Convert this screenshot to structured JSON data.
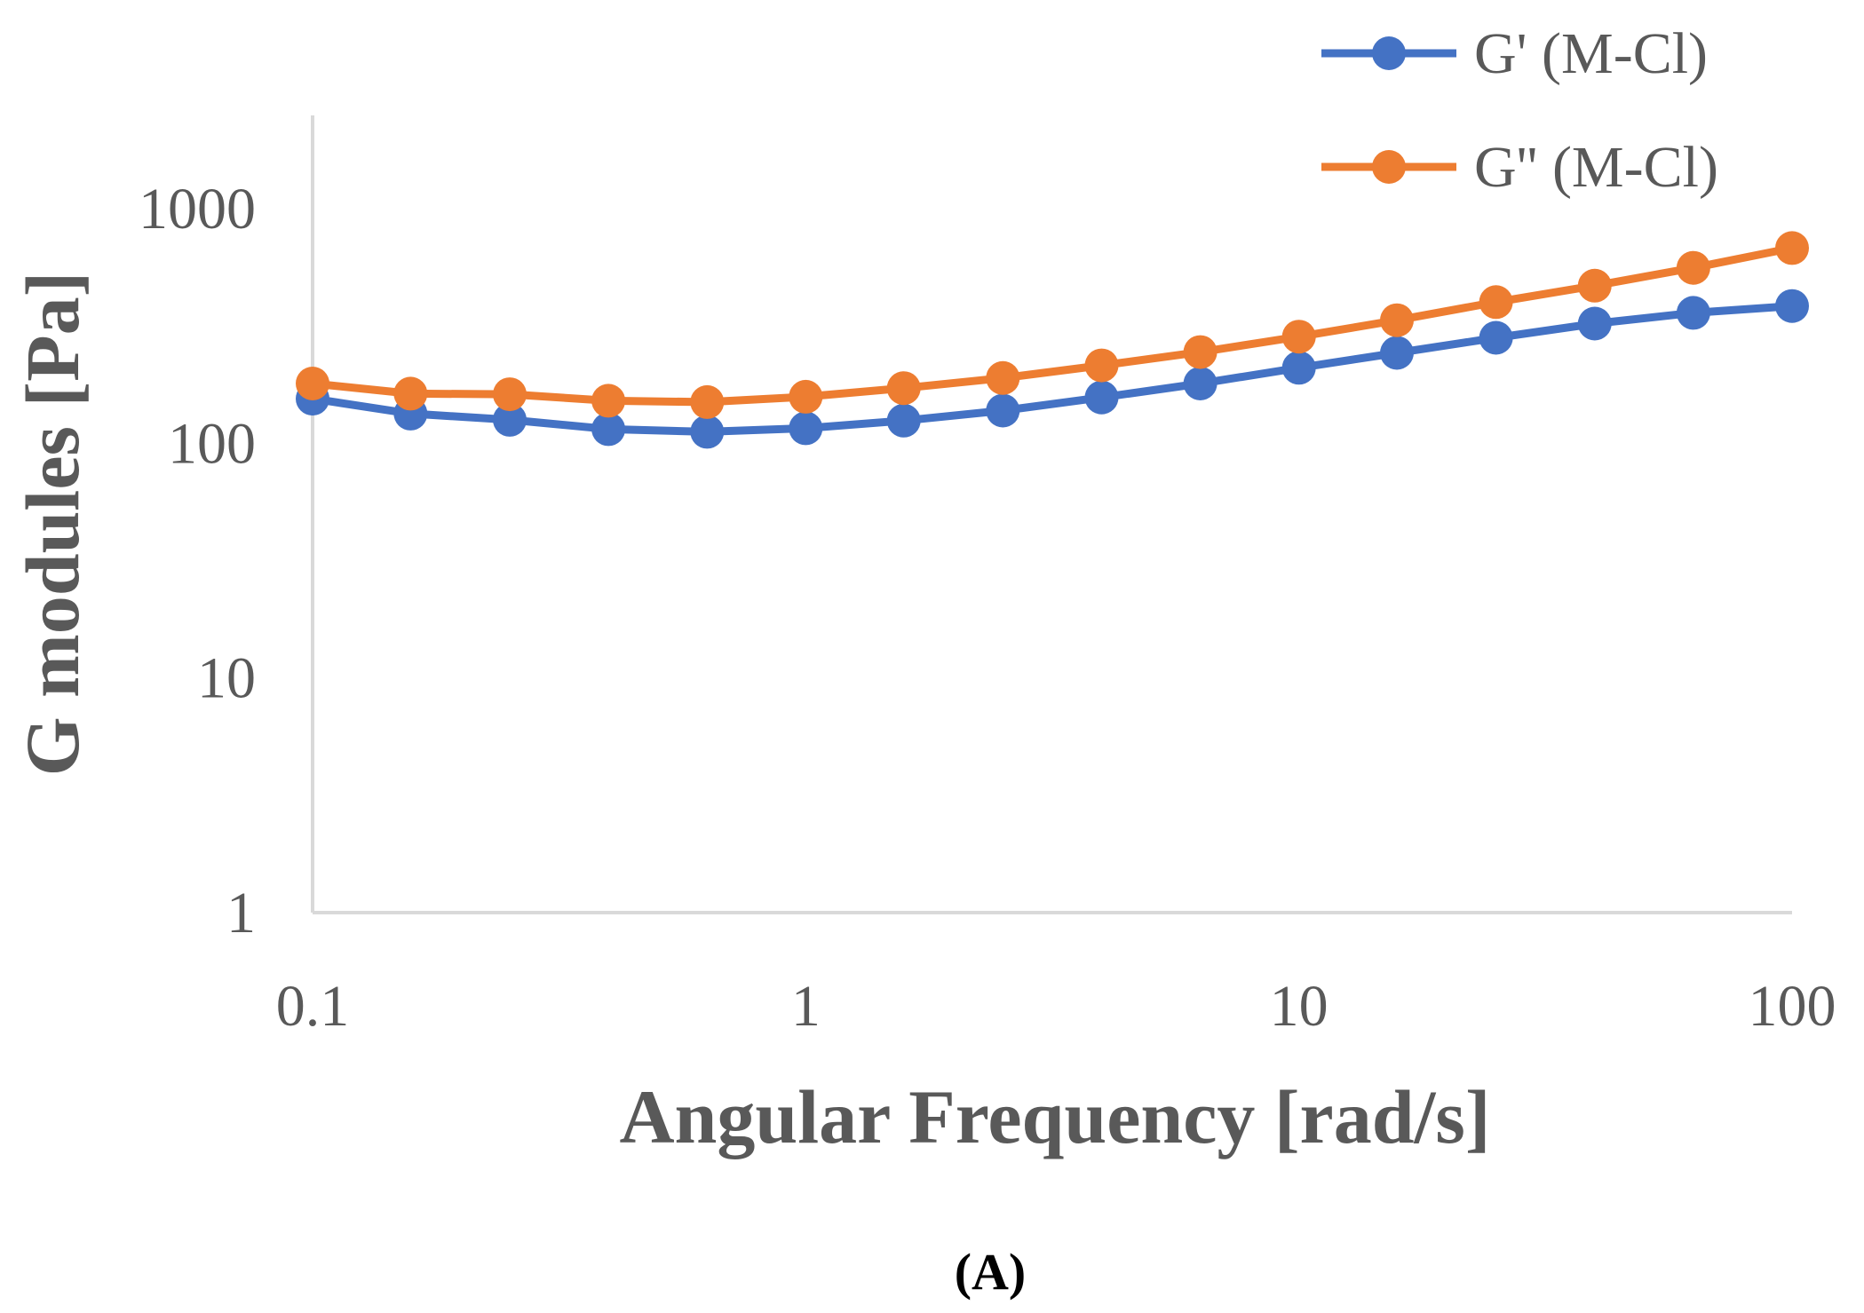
{
  "chart_data": {
    "type": "line",
    "xscale": "log",
    "yscale": "log",
    "title": "",
    "xlabel": "Angular Frequency [rad/s]",
    "ylabel": "G modules [Pa]",
    "xlim": [
      0.1,
      100
    ],
    "ylim": [
      1,
      2500
    ],
    "xticks": [
      0.1,
      1,
      10,
      100
    ],
    "xtick_labels": [
      "0.1",
      "1",
      "10",
      "100"
    ],
    "yticks": [
      1,
      10,
      100,
      1000
    ],
    "ytick_labels": [
      "1",
      "10",
      "100",
      "1000"
    ],
    "x": [
      0.1,
      0.158,
      0.251,
      0.398,
      0.631,
      1,
      1.58,
      2.51,
      3.98,
      6.31,
      10,
      15.8,
      25.1,
      39.8,
      63.1,
      100
    ],
    "series": [
      {
        "name": "G' (M-Cl)",
        "color": "#4472C4",
        "values": [
          155,
          134,
          126,
          115,
          112,
          116,
          125,
          138,
          157,
          180,
          210,
          243,
          282,
          324,
          360,
          385
        ]
      },
      {
        "name": "G'' (M-Cl)",
        "color": "#ED7D31",
        "values": [
          180,
          163,
          162,
          152,
          150,
          158,
          172,
          190,
          215,
          245,
          285,
          335,
          400,
          470,
          560,
          680
        ]
      }
    ],
    "grid": false,
    "legend_position": "top-right",
    "axis_color": "#D9D9D9",
    "caption": "(A)"
  }
}
